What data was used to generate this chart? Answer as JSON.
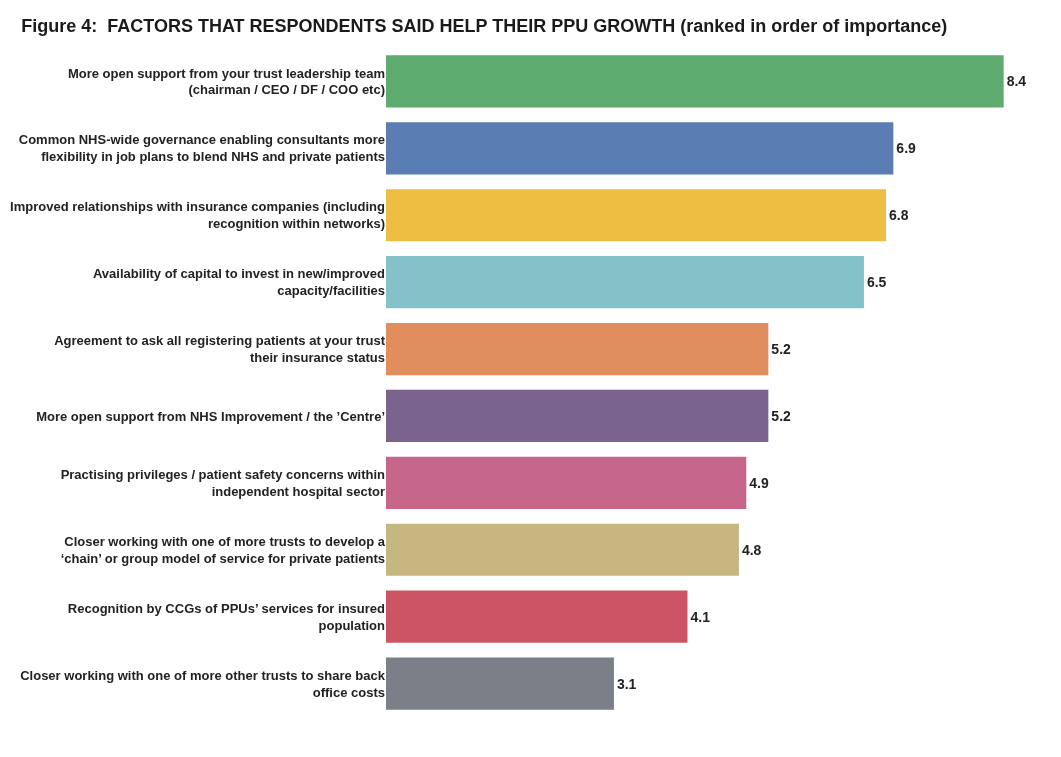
{
  "chart_data": {
    "type": "bar",
    "orientation": "horizontal",
    "title": "Figure 4:  FACTORS THAT RESPONDENTS SAID HELP THEIR PPU GROWTH (ranked in order of importance)",
    "categories": [
      "More open support from your trust leadership team (chairman / CEO / DF / COO etc)",
      "Common NHS-wide governance enabling consultants more flexibility in job plans to blend NHS and private patients",
      "Improved relationships with insurance companies (including recognition within networks)",
      "Availability of capital to invest in new/improved capacity/facilities",
      "Agreement to ask all registering patients at your trust their insurance status",
      "More open support from NHS Improvement / the ’Centre’",
      "Practising privileges / patient safety concerns within independent hospital sector",
      "Closer working with one of more trusts to develop a ‘chain’ or group model of service for private patients",
      "Recognition by CCGs of PPUs’ services for insured population",
      "Closer working with one of more other trusts to share back office costs"
    ],
    "values": [
      8.4,
      6.9,
      6.8,
      6.5,
      5.2,
      5.2,
      4.9,
      4.8,
      4.1,
      3.1
    ],
    "colors": [
      "#5dab6e",
      "#5a7db3",
      "#eebe42",
      "#84c2c9",
      "#e08e5d",
      "#7a638c",
      "#c6668a",
      "#c6b780",
      "#cd5563",
      "#7b8088"
    ],
    "data_labels": true,
    "tick_labels": "y",
    "legend": false
  }
}
